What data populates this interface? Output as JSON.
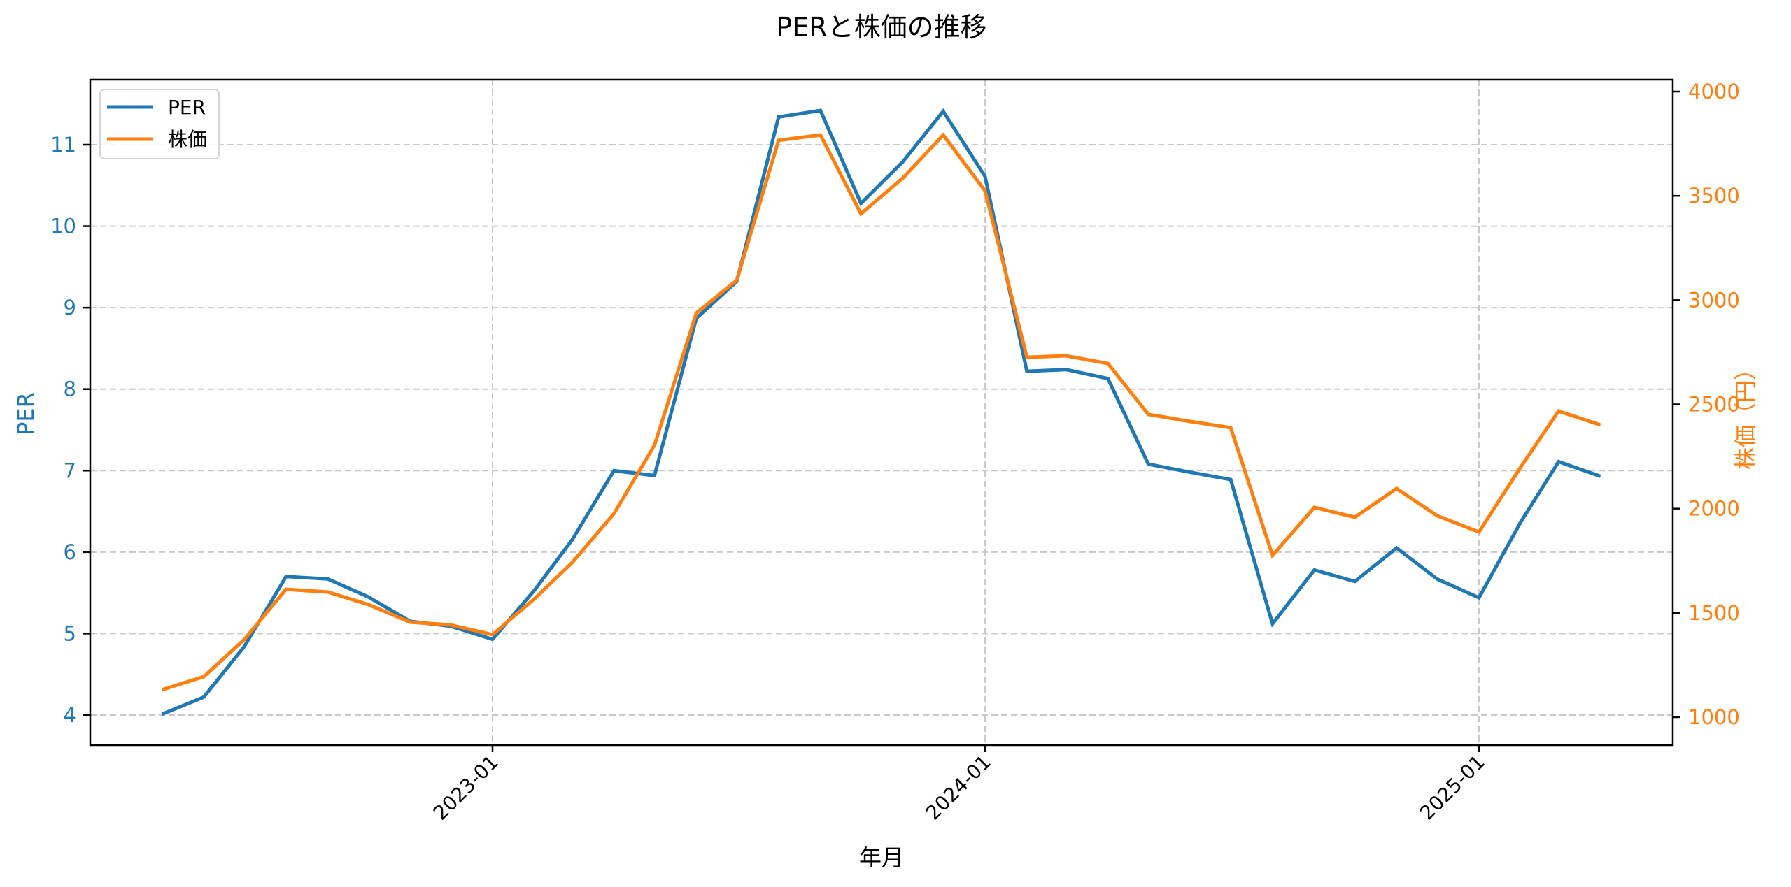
{
  "chart_data": {
    "type": "line",
    "title": "PERと株価の推移",
    "xlabel": "年月",
    "ylabel_left": "PER",
    "ylabel_right": "株価（円）",
    "x_tick_labels": [
      "2023-01",
      "2024-01",
      "2025-01"
    ],
    "left_axis": {
      "ticks": [
        4,
        5,
        6,
        7,
        8,
        9,
        10,
        11
      ],
      "ylim": [
        3.65,
        11.8
      ],
      "color": "#1f77b4"
    },
    "right_axis": {
      "ticks": [
        1000,
        1500,
        2000,
        2500,
        3000,
        3500,
        4000
      ],
      "ylim": [
        870,
        4060
      ],
      "color": "#ff7f0e"
    },
    "grid": true,
    "legend_position": "upper left",
    "x": [
      "2022-05",
      "2022-06",
      "2022-07",
      "2022-08",
      "2022-09",
      "2022-10",
      "2022-11",
      "2022-12",
      "2023-01",
      "2023-02",
      "2023-03",
      "2023-04",
      "2023-05",
      "2023-06",
      "2023-07",
      "2023-08",
      "2023-09",
      "2023-10",
      "2023-11",
      "2023-12",
      "2024-01",
      "2024-02",
      "2024-03",
      "2024-04",
      "2024-05",
      "2024-06",
      "2024-07",
      "2024-08",
      "2024-09",
      "2024-10",
      "2024-11",
      "2024-12",
      "2025-01",
      "2025-02",
      "2025-03",
      "2025-04"
    ],
    "series": [
      {
        "name": "PER",
        "axis": "left",
        "color": "#1f77b4",
        "values": [
          4.01,
          4.22,
          4.84,
          5.7,
          5.67,
          5.45,
          5.15,
          5.09,
          4.93,
          5.53,
          6.15,
          7.0,
          6.94,
          8.87,
          9.32,
          11.34,
          11.42,
          10.28,
          10.79,
          11.41,
          10.61,
          8.22,
          8.24,
          8.13,
          7.08,
          6.98,
          6.89,
          5.12,
          5.78,
          5.64,
          6.05,
          5.67,
          5.44,
          6.37,
          7.11,
          6.93
        ]
      },
      {
        "name": "株価",
        "axis": "right",
        "color": "#ff7f0e",
        "values": [
          1131,
          1194,
          1372,
          1613,
          1600,
          1540,
          1456,
          1442,
          1396,
          1567,
          1741,
          1976,
          2304,
          2938,
          3095,
          3766,
          3792,
          3414,
          3585,
          3792,
          3524,
          2726,
          2733,
          2696,
          2452,
          2418,
          2388,
          1776,
          2006,
          1959,
          2096,
          1966,
          1888,
          2200,
          2468,
          2401
        ]
      }
    ]
  },
  "legend": {
    "items": [
      {
        "label": "PER",
        "color": "#1f77b4"
      },
      {
        "label": "株価",
        "color": "#ff7f0e"
      }
    ]
  }
}
